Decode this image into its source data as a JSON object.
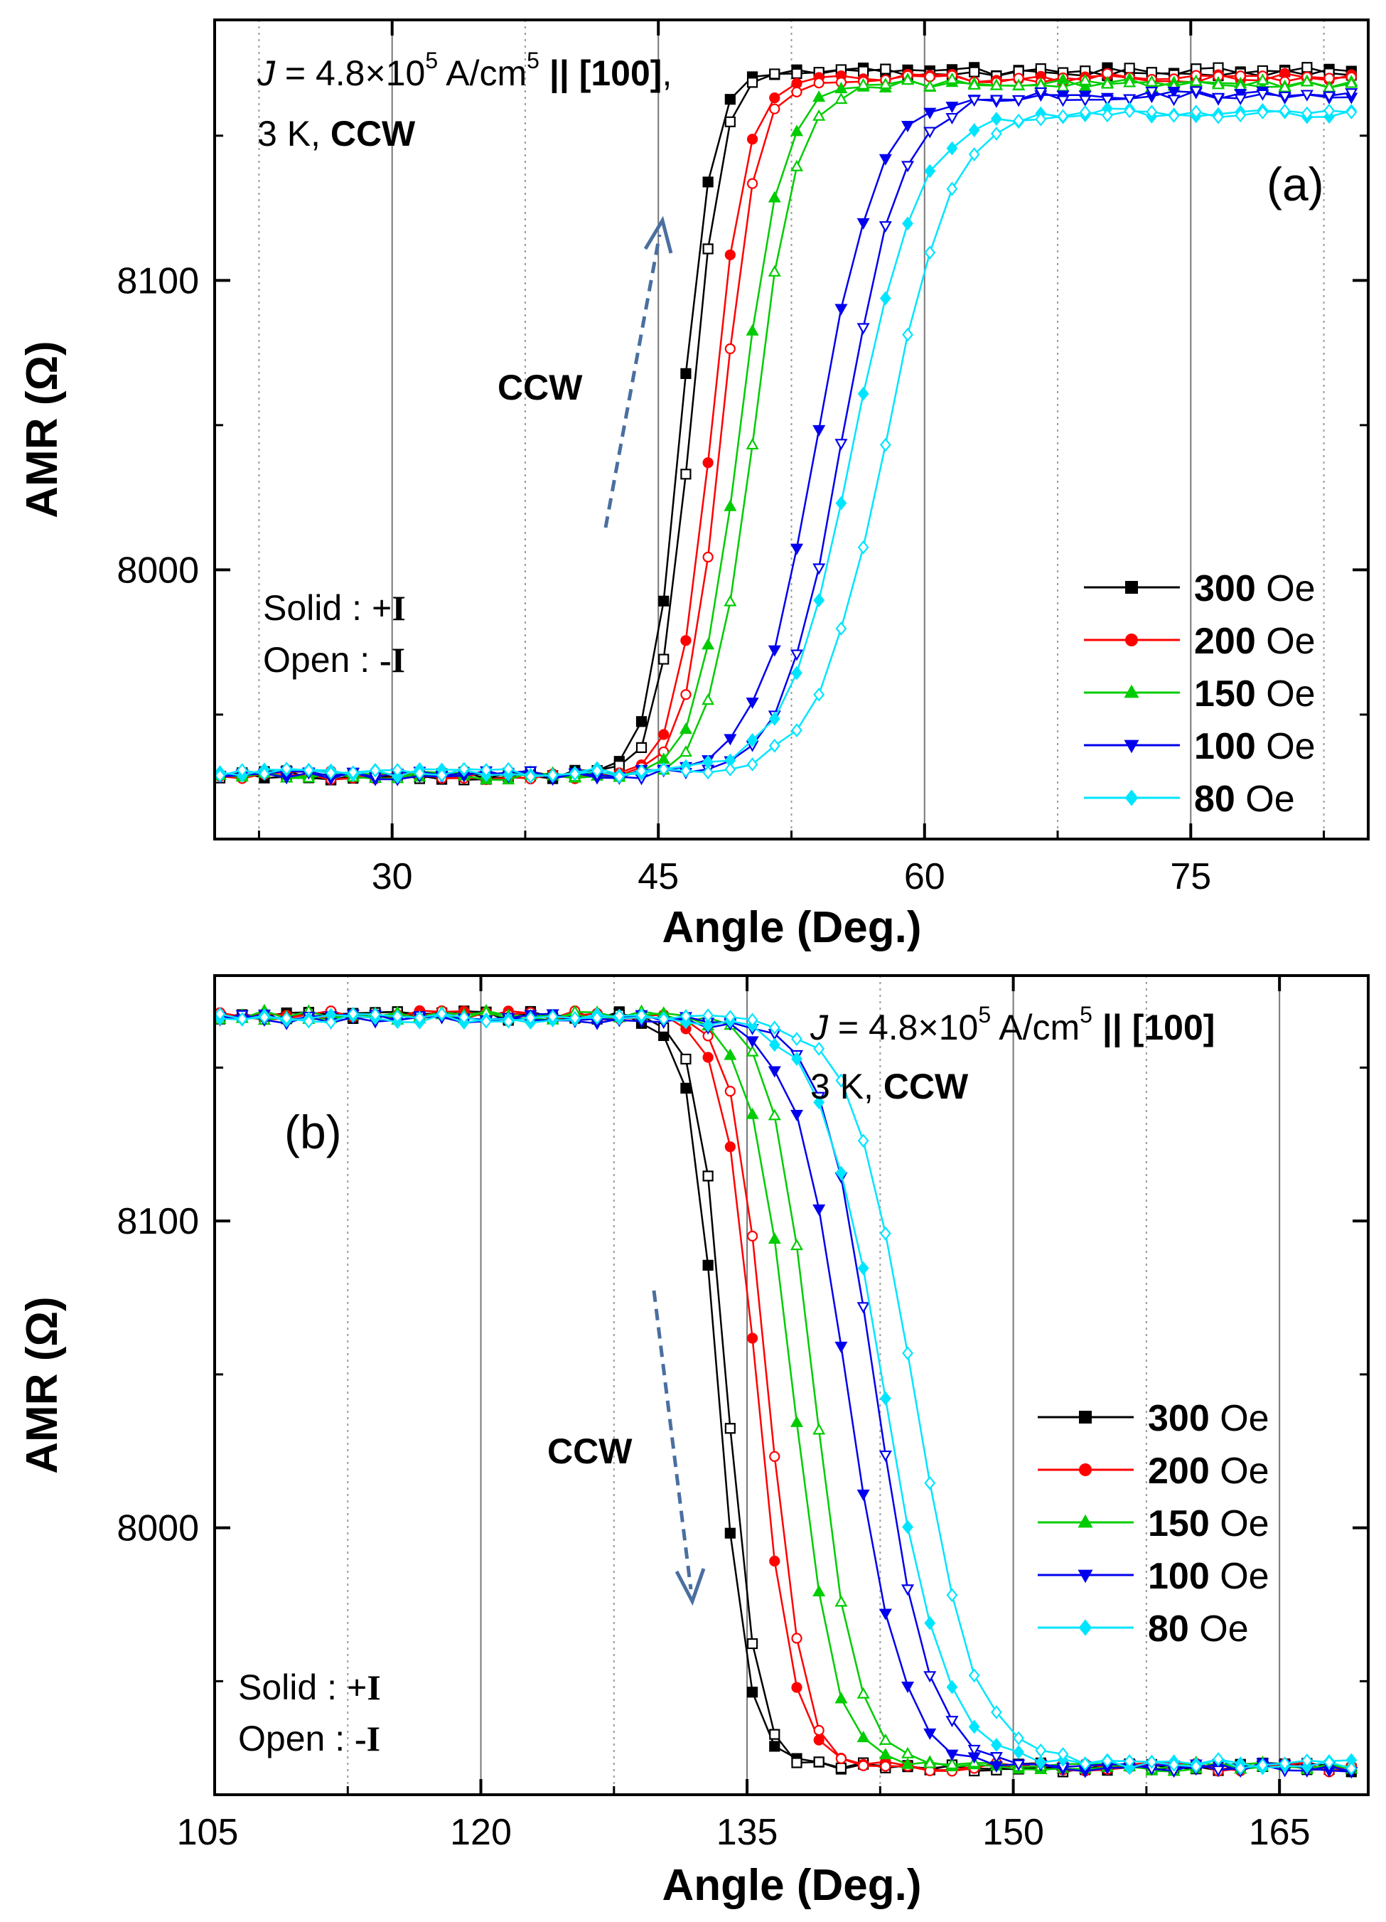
{
  "chart_data": [
    {
      "type": "line",
      "panel": "(a)",
      "xlabel": "Angle (Deg.)",
      "ylabel": "AMR (Ω)",
      "xlim": [
        20,
        85
      ],
      "ylim": [
        7907,
        8190
      ],
      "xticks": [
        30,
        45,
        60,
        75
      ],
      "yticks": [
        8000,
        8100
      ],
      "xtick_labels": [
        "30",
        "45",
        "60",
        "75"
      ],
      "ytick_labels": [
        "8000",
        "8100"
      ],
      "minor_dotted_x": [
        22.5,
        37.5,
        52.5,
        67.5,
        82.5
      ],
      "annotation": {
        "j_symbol": "J",
        "j_line_rest": " = 4.8×10",
        "j_exp": "5",
        "j_unit": " A/cm",
        "j_unit_exp": "5",
        "j_sep": " || ",
        "j_dir": "[100]",
        "j_trail": ",",
        "temp": "3 K, ",
        "mode": "CCW"
      },
      "arrow_label": "CCW",
      "solid_label": "Solid : ",
      "solid_sign": "+I",
      "open_label": "Open : ",
      "open_sign": "-I",
      "legend_position": "bottom-right",
      "legend_unit": "Oe",
      "series": [
        {
          "name": "300",
          "color": "#000000",
          "marker": "square",
          "x0": 46.3,
          "w": 0.9,
          "low": 7929,
          "high": 8172,
          "x0_open": 46.8
        },
        {
          "name": "200",
          "color": "#ff0000",
          "marker": "circle",
          "x0": 48.0,
          "w": 1.0,
          "low": 7929,
          "high": 8170,
          "x0_open": 48.6
        },
        {
          "name": "150",
          "color": "#00cc00",
          "marker": "triangle-up",
          "x0": 49.6,
          "w": 1.2,
          "low": 7929,
          "high": 8168,
          "x0_open": 50.4
        },
        {
          "name": "100",
          "color": "#0000ee",
          "marker": "triangle-down",
          "x0": 54.0,
          "w": 1.7,
          "low": 7929,
          "high": 8164,
          "x0_open": 55.4
        },
        {
          "name": "80",
          "color": "#00e5ff",
          "marker": "diamond",
          "x0": 56.0,
          "w": 1.9,
          "low": 7930,
          "high": 8158,
          "x0_open": 57.8
        }
      ]
    },
    {
      "type": "line",
      "panel": "(b)",
      "xlabel": "Angle (Deg.)",
      "ylabel": "AMR (Ω)",
      "xlim": [
        105,
        170
      ],
      "ylim": [
        7913,
        8180
      ],
      "xticks": [
        105,
        120,
        135,
        150,
        165
      ],
      "yticks": [
        8000,
        8100
      ],
      "xtick_labels": [
        "105",
        "120",
        "135",
        "150",
        "165"
      ],
      "ytick_labels": [
        "8000",
        "8100"
      ],
      "minor_dotted_x": [
        112.5,
        127.5,
        142.5,
        157.5
      ],
      "annotation": {
        "j_symbol": "J",
        "j_line_rest": " = 4.8×10",
        "j_exp": "5",
        "j_unit": " A/cm",
        "j_unit_exp": "5",
        "j_sep": " || ",
        "j_dir": "[100]",
        "temp": "3 K, ",
        "mode": "CCW"
      },
      "arrow_label": "CCW",
      "solid_label": "Solid : ",
      "solid_sign": "+I",
      "open_label": "Open : ",
      "open_sign": "-I",
      "legend_position": "right",
      "legend_unit": "Oe",
      "series": [
        {
          "name": "300",
          "color": "#000000",
          "marker": "square",
          "x0": 133.4,
          "w": 0.85,
          "low": 7922,
          "high": 8167,
          "x0_open": 133.9
        },
        {
          "name": "200",
          "color": "#ff0000",
          "marker": "circle",
          "x0": 135.6,
          "w": 1.0,
          "low": 7922,
          "high": 8167,
          "x0_open": 136.2
        },
        {
          "name": "150",
          "color": "#00cc00",
          "marker": "triangle-up",
          "x0": 137.6,
          "w": 1.2,
          "low": 7922,
          "high": 8167,
          "x0_open": 138.8
        },
        {
          "name": "100",
          "color": "#0000ee",
          "marker": "triangle-down",
          "x0": 140.7,
          "w": 1.55,
          "low": 7922,
          "high": 8166,
          "x0_open": 142.3
        },
        {
          "name": "80",
          "color": "#00e5ff",
          "marker": "diamond",
          "x0": 142.7,
          "w": 1.75,
          "low": 7923,
          "high": 8166,
          "x0_open": 144.4
        }
      ]
    }
  ]
}
